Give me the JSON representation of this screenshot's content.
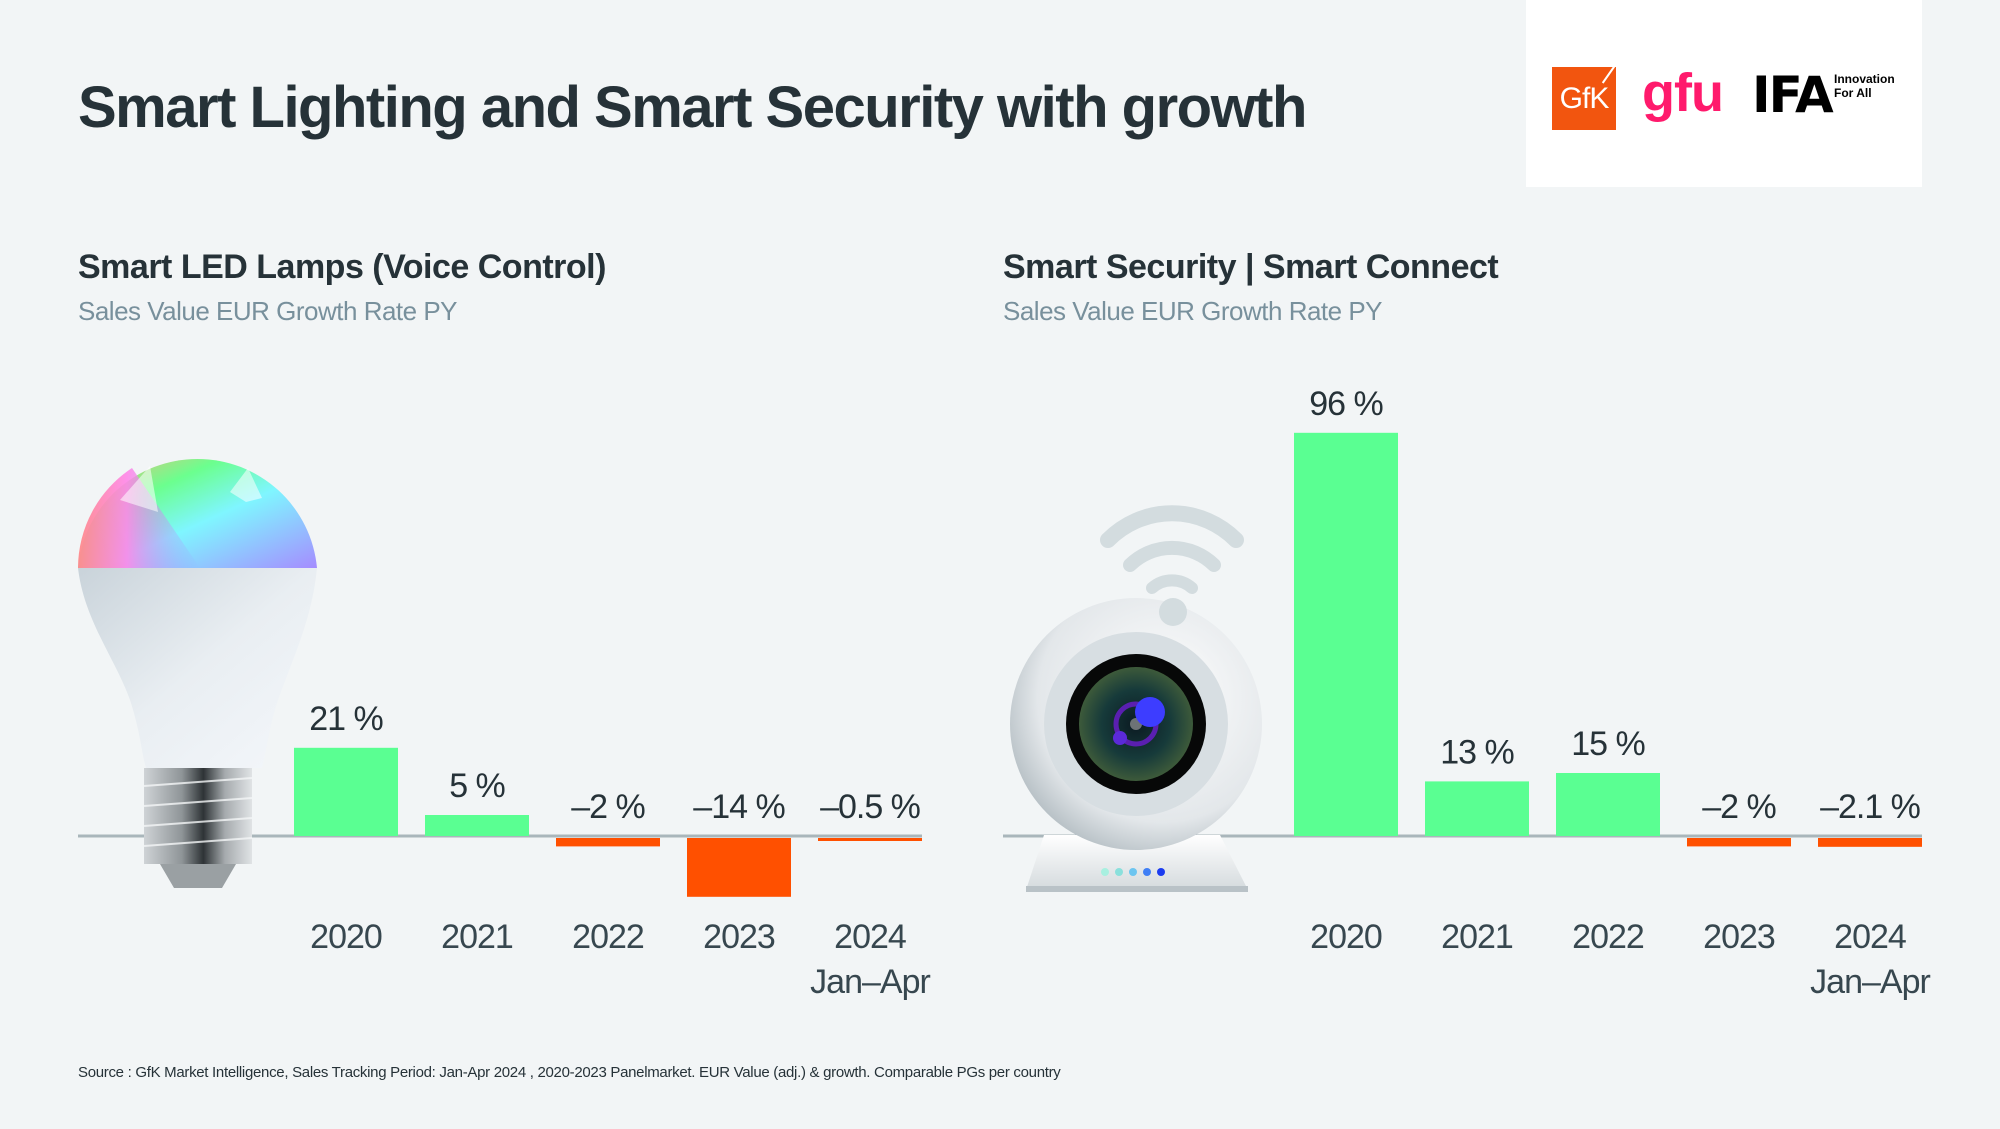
{
  "header": {
    "title": "Smart Lighting and Smart Security with growth"
  },
  "logos": {
    "gfk": "GfK",
    "gfu": "gfu",
    "ifa": "IFA",
    "ifa_tag_line1": "Innovation",
    "ifa_tag_line2": "For All"
  },
  "colors": {
    "positive": "#5aff92",
    "negative": "#ff5000",
    "axis": "#a9b6bb",
    "background": "#f2f5f6"
  },
  "chart_data": [
    {
      "type": "bar",
      "title": "Smart LED Lamps (Voice Control)",
      "subtitle": "Sales Value EUR Growth Rate PY",
      "xlabel": "",
      "ylabel": "Sales Value EUR Growth Rate PY (%)",
      "categories": [
        "2020",
        "2021",
        "2022",
        "2023",
        "2024"
      ],
      "category_sublabels": [
        "",
        "",
        "",
        "",
        "Jan–Apr"
      ],
      "values": [
        21,
        5,
        -2,
        -14,
        -0.5
      ],
      "data_labels": [
        "21 %",
        "5 %",
        "–2 %",
        "–14 %",
        "–0.5 %"
      ],
      "illustration": "smart-bulb",
      "grid": false,
      "legend": "none"
    },
    {
      "type": "bar",
      "title": "Smart Security | Smart Connect",
      "subtitle": "Sales Value EUR Growth Rate PY",
      "xlabel": "",
      "ylabel": "Sales Value EUR Growth Rate PY (%)",
      "categories": [
        "2020",
        "2021",
        "2022",
        "2023",
        "2024"
      ],
      "category_sublabels": [
        "",
        "",
        "",
        "",
        "Jan–Apr"
      ],
      "values": [
        96,
        13,
        15,
        -2,
        -2.1
      ],
      "data_labels": [
        "96 %",
        "13 %",
        "15 %",
        "–2 %",
        "–2.1 %"
      ],
      "illustration": "security-camera",
      "grid": false,
      "legend": "none"
    }
  ],
  "footer": {
    "source": "Source : GfK Market Intelligence, Sales Tracking Period: Jan-Apr 2024 , 2020-2023 Panelmarket. EUR Value (adj.) & growth. Comparable PGs per country"
  }
}
